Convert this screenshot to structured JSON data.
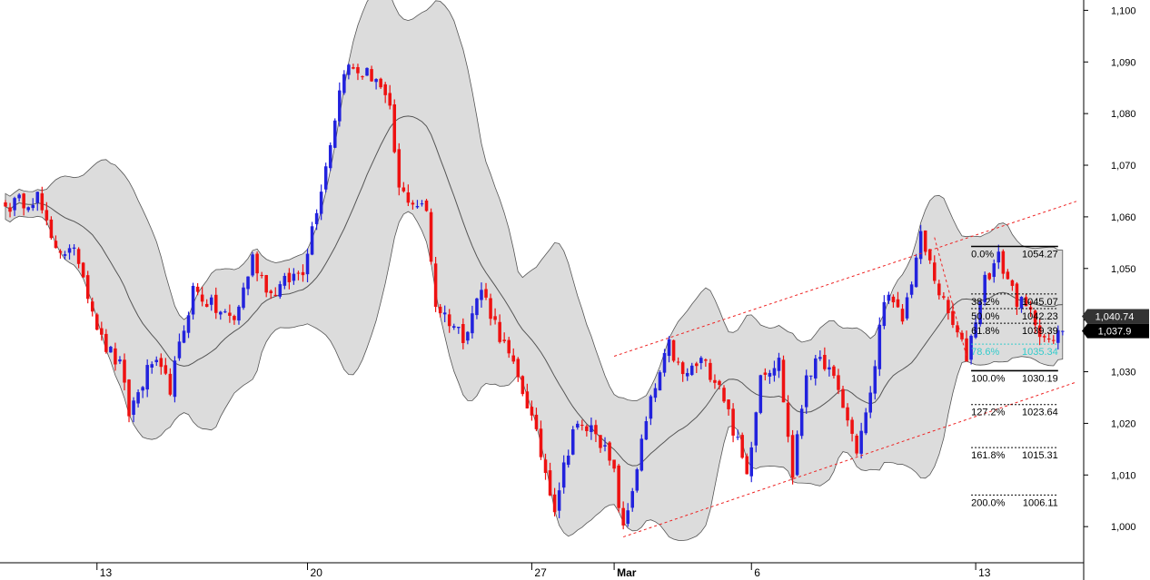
{
  "chart_data": {
    "type": "candlestick",
    "y_axis": {
      "position": "right",
      "range": [
        993,
        1102
      ],
      "ticks": [
        {
          "value": 1000,
          "label": "1,000"
        },
        {
          "value": 1010,
          "label": "1,010"
        },
        {
          "value": 1020,
          "label": "1,020"
        },
        {
          "value": 1030,
          "label": "1,030"
        },
        {
          "value": 1040,
          "label": "1,040"
        },
        {
          "value": 1050,
          "label": "1,050"
        },
        {
          "value": 1060,
          "label": "1,060"
        },
        {
          "value": 1070,
          "label": "1,070"
        },
        {
          "value": 1080,
          "label": "1,080"
        },
        {
          "value": 1090,
          "label": "1,090"
        },
        {
          "value": 1100,
          "label": "1,100"
        }
      ]
    },
    "x_axis": {
      "range": [
        0,
        235
      ],
      "ticks": [
        {
          "t": 20,
          "label": "13",
          "bold": false
        },
        {
          "t": 66,
          "label": "20",
          "bold": false
        },
        {
          "t": 115,
          "label": "27",
          "bold": false
        },
        {
          "t": 133,
          "label": "Mar",
          "bold": true
        },
        {
          "t": 163,
          "label": "6",
          "bold": false
        },
        {
          "t": 212,
          "label": "13",
          "bold": false
        }
      ]
    },
    "price_path": [
      [
        0,
        1062
      ],
      [
        7,
        1064
      ],
      [
        10,
        1055
      ],
      [
        16,
        1052
      ],
      [
        21,
        1036
      ],
      [
        25,
        1031
      ],
      [
        27,
        1022
      ],
      [
        32,
        1032
      ],
      [
        36,
        1027
      ],
      [
        41,
        1046
      ],
      [
        46,
        1042
      ],
      [
        50,
        1040
      ],
      [
        54,
        1052
      ],
      [
        58,
        1045
      ],
      [
        65,
        1050
      ],
      [
        70,
        1070
      ],
      [
        74,
        1089
      ],
      [
        81,
        1087
      ],
      [
        84,
        1080
      ],
      [
        86,
        1065
      ],
      [
        92,
        1061
      ],
      [
        94,
        1043
      ],
      [
        100,
        1037
      ],
      [
        104,
        1046
      ],
      [
        109,
        1035
      ],
      [
        114,
        1024
      ],
      [
        120,
        1004
      ],
      [
        124,
        1019
      ],
      [
        129,
        1019
      ],
      [
        133,
        1010
      ],
      [
        135,
        999
      ],
      [
        139,
        1016
      ],
      [
        141,
        1024
      ],
      [
        145,
        1035
      ],
      [
        148,
        1029
      ],
      [
        152,
        1032
      ],
      [
        156,
        1028
      ],
      [
        159,
        1019
      ],
      [
        162,
        1010
      ],
      [
        165,
        1030
      ],
      [
        169,
        1032
      ],
      [
        172,
        1010
      ],
      [
        175,
        1030
      ],
      [
        179,
        1032
      ],
      [
        182,
        1026
      ],
      [
        186,
        1015
      ],
      [
        189,
        1025
      ],
      [
        192,
        1045
      ],
      [
        196,
        1040
      ],
      [
        200,
        1056
      ],
      [
        205,
        1043
      ],
      [
        208,
        1037
      ],
      [
        210,
        1033
      ],
      [
        214,
        1048
      ],
      [
        217,
        1052
      ],
      [
        221,
        1044
      ],
      [
        225,
        1040
      ],
      [
        228,
        1035
      ],
      [
        231,
        1037.9
      ]
    ],
    "indicators": [
      {
        "type": "bollinger_bands",
        "fill": "#dcdcdc",
        "stroke": "#555555"
      }
    ],
    "fibonacci": {
      "t_start": 211,
      "t_end": 230,
      "levels": [
        {
          "pct": "0.0%",
          "value": "1054.27",
          "price": 1054.27,
          "style": "solid",
          "color": "#000000"
        },
        {
          "pct": "38.2%",
          "value": "1045.07",
          "price": 1045.07,
          "style": "dashed",
          "color": "#000000"
        },
        {
          "pct": "50.0%",
          "value": "1042.23",
          "price": 1042.23,
          "style": "dashed",
          "color": "#000000"
        },
        {
          "pct": "61.8%",
          "value": "1039.39",
          "price": 1039.39,
          "style": "dashed",
          "color": "#000000"
        },
        {
          "pct": "78.6%",
          "value": "1035.34",
          "price": 1035.34,
          "style": "dashed",
          "color": "#33cccc"
        },
        {
          "pct": "100.0%",
          "value": "1030.19",
          "price": 1030.19,
          "style": "solid",
          "color": "#000000"
        },
        {
          "pct": "127.2%",
          "value": "1023.64",
          "price": 1023.64,
          "style": "dashed",
          "color": "#000000"
        },
        {
          "pct": "161.8%",
          "value": "1015.31",
          "price": 1015.31,
          "style": "dashed",
          "color": "#000000"
        },
        {
          "pct": "200.0%",
          "value": "1006.11",
          "price": 1006.11,
          "style": "dashed",
          "color": "#000000"
        }
      ]
    },
    "trend_channel": {
      "color": "#ee2222",
      "lines": [
        {
          "from": [
            133,
            1033
          ],
          "to": [
            234,
            1063
          ]
        },
        {
          "from": [
            135,
            998
          ],
          "to": [
            234,
            1028
          ]
        },
        {
          "from": [
            203,
            1056
          ],
          "to": [
            210,
            1033
          ]
        }
      ]
    },
    "price_tags": [
      {
        "label": "1,040.74",
        "price": 1040.74,
        "bg": "#333333"
      },
      {
        "label": "1,037.9",
        "price": 1037.9,
        "bg": "#000000"
      }
    ],
    "colors": {
      "up": "#2222dd",
      "down": "#ee1111"
    }
  }
}
